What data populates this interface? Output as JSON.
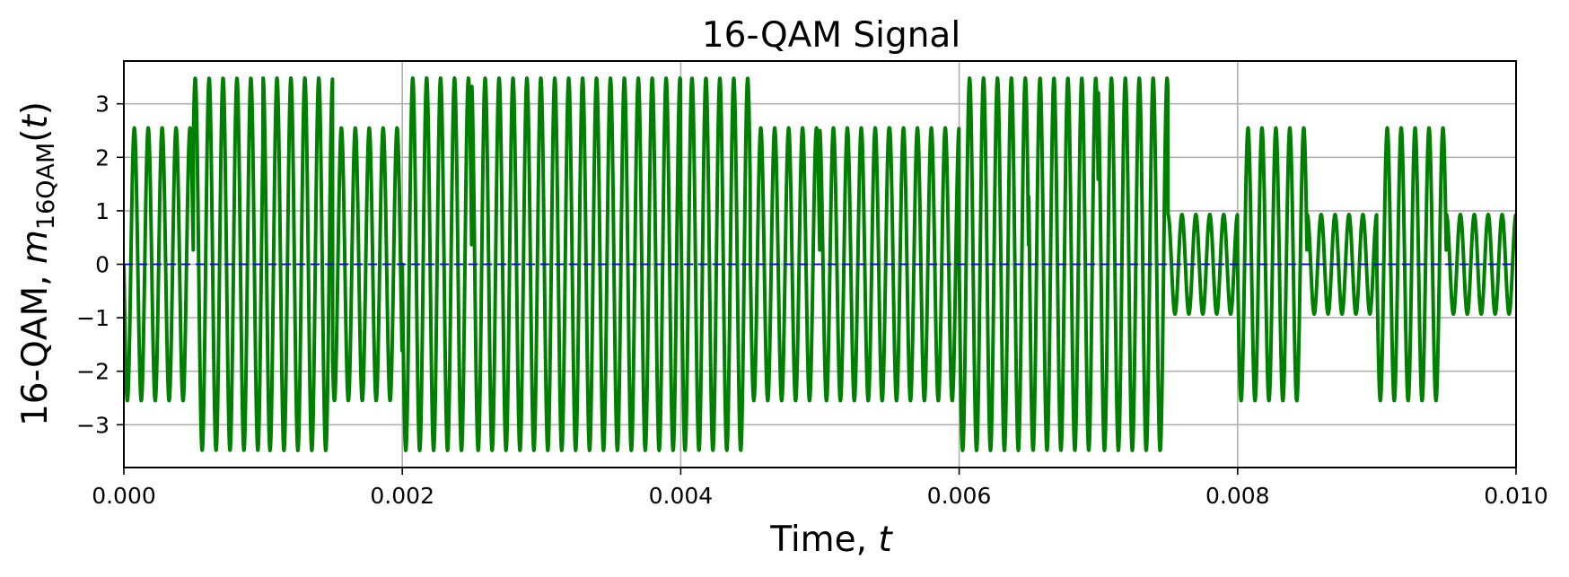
{
  "chart_data": {
    "type": "line",
    "title": "16-QAM Signal",
    "xlabel": {
      "main": "Time, ",
      "italic": "t"
    },
    "ylabel": {
      "prefix": "16-QAM, ",
      "symbol": "m",
      "subscript": "16QAM",
      "open": "(",
      "arg": "t",
      "close": ")"
    },
    "xlim": [
      0.0,
      0.01
    ],
    "ylim": [
      -3.8,
      3.8
    ],
    "x_ticks": [
      0.0,
      0.002,
      0.004,
      0.006,
      0.008,
      0.01
    ],
    "x_tick_labels": [
      "0.000",
      "0.002",
      "0.004",
      "0.006",
      "0.008",
      "0.010"
    ],
    "y_ticks": [
      -3,
      -2,
      -1,
      0,
      1,
      2,
      3
    ],
    "y_tick_labels": [
      "−3",
      "−2",
      "−1",
      "0",
      "1",
      "2",
      "3"
    ],
    "grid": true,
    "carrier_frequency_hz": 10000,
    "symbol_duration_s": 0.0005,
    "series": [
      {
        "color": "#008000",
        "symbol_start_times": [
          0.0,
          0.0005,
          0.001,
          0.0015,
          0.002,
          0.0025,
          0.003,
          0.0035,
          0.004,
          0.0045,
          0.005,
          0.0055,
          0.006,
          0.0065,
          0.007,
          0.0075,
          0.008,
          0.0085,
          0.009,
          0.0095
        ],
        "envelope_amplitude": [
          2.55,
          3.48,
          3.48,
          2.55,
          3.48,
          3.48,
          3.48,
          3.48,
          3.48,
          2.55,
          2.55,
          2.55,
          3.48,
          3.48,
          3.48,
          0.93,
          2.55,
          0.93,
          2.55,
          0.93
        ],
        "phase_rad": [
          1.57,
          -0.78,
          0.0,
          2.36,
          1.57,
          0.3,
          0.3,
          0.3,
          1.2,
          1.57,
          0.2,
          0.0,
          1.57,
          1.2,
          0.4,
          0.0,
          1.57,
          0.0,
          1.57,
          0.0
        ]
      },
      {
        "color": "#0000cc",
        "style": "dashed",
        "values_constant": 0
      }
    ]
  }
}
